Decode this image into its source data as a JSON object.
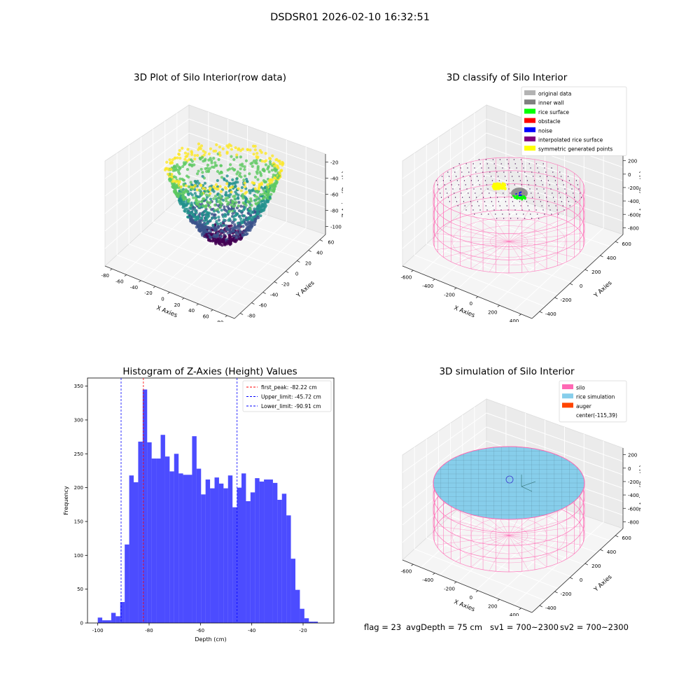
{
  "suptitle": "DSDSR01 2026-02-10 16:32:51",
  "status": {
    "flag": "flag = 23",
    "avg": "avgDepth = 75 cm",
    "sv1": "sv1 = 700~2300",
    "sv2": "sv2 = 700~2300"
  },
  "chart_data": [
    {
      "type": "scatter",
      "title": "3D Plot of Silo Interior(row data)",
      "xlabel": "X Axies",
      "ylabel": "Y Axies",
      "zlabel": "Z Axies (Depth)",
      "xticks": [
        "-80",
        "-60",
        "-40",
        "-20",
        "0",
        "20",
        "40",
        "60",
        "80"
      ],
      "yticks": [
        "-80",
        "-60",
        "-40",
        "-20",
        "0",
        "20",
        "40",
        "60"
      ],
      "zticks": [
        "-20",
        "-40",
        "-60",
        "-80",
        "-100"
      ],
      "xlim": [
        -90,
        85
      ],
      "ylim": [
        -85,
        70
      ],
      "zlim": [
        -110,
        -10
      ],
      "description_values": {
        "z_min": -100,
        "z_max": -12
      },
      "colormap": [
        "#440154",
        "#3b528b",
        "#21918c",
        "#5ec962",
        "#fde725"
      ]
    },
    {
      "type": "scatter",
      "title": "3D classify of Silo Interior",
      "xlabel": "X Axies",
      "ylabel": "Y Axies",
      "zlabel": "Z Axies (Depth)",
      "xticks": [
        "-600",
        "-400",
        "-200",
        "0",
        "200",
        "400"
      ],
      "yticks": [
        "-400",
        "-200",
        "0",
        "200",
        "400",
        "600"
      ],
      "zticks": [
        "200",
        "0",
        "-200",
        "-400",
        "-600",
        "-800"
      ],
      "legend": [
        {
          "label": "original data",
          "color": "#b3b3b3"
        },
        {
          "label": "inner wall",
          "color": "#808080"
        },
        {
          "label": "rice surface",
          "color": "#00ff00"
        },
        {
          "label": "obstacle",
          "color": "#ff0000"
        },
        {
          "label": "noise",
          "color": "#0000ff"
        },
        {
          "label": "interpolated rice surface",
          "color": "#800080"
        },
        {
          "label": "symmetric generated points",
          "color": "#ffff00"
        }
      ],
      "legend_position": "top-right"
    },
    {
      "type": "bar",
      "title": "Histogram of Z-Axies (Height) Values",
      "xlabel": "Depth (cm)",
      "ylabel": "Frequency",
      "xlim": [
        -104,
        -8
      ],
      "ylim": [
        0,
        362
      ],
      "xticks": [
        -100,
        -80,
        -60,
        -40,
        -20
      ],
      "yticks": [
        0,
        50,
        100,
        150,
        200,
        250,
        300,
        350
      ],
      "bin_start": -100,
      "bin_width": 1.75,
      "values": [
        8,
        4,
        4,
        15,
        10,
        31,
        116,
        218,
        208,
        268,
        345,
        267,
        243,
        243,
        278,
        246,
        224,
        250,
        221,
        219,
        219,
        276,
        228,
        190,
        212,
        199,
        215,
        206,
        199,
        218,
        171,
        200,
        221,
        180,
        193,
        214,
        209,
        212,
        212,
        207,
        182,
        191,
        159,
        95,
        49,
        21,
        7,
        2,
        2
      ],
      "bar_color": "#0000ff",
      "lines": [
        {
          "label": "first_peak: -82.22 cm",
          "x": -82.22,
          "color": "#ff0000"
        },
        {
          "label": "Upper_limit: -45.72 cm",
          "x": -45.72,
          "color": "#0000ff"
        },
        {
          "label": "Lower_limit: -90.91 cm",
          "x": -90.91,
          "color": "#0000ff"
        }
      ],
      "legend_position": "top-right"
    },
    {
      "type": "area",
      "title": "3D simulation of Silo Interior",
      "xlabel": "X Axies",
      "ylabel": "Y Axies",
      "zlabel": "Z Axies (Depth)",
      "xticks": [
        "-600",
        "-400",
        "-200",
        "0",
        "200",
        "400"
      ],
      "yticks": [
        "-400",
        "-200",
        "0",
        "200",
        "400",
        "600"
      ],
      "zticks": [
        "200",
        "0",
        "-200",
        "-400",
        "-600",
        "-800"
      ],
      "legend": [
        {
          "label": "silo",
          "color": "#ff69b4"
        },
        {
          "label": "rice simulation",
          "color": "#87ceeb"
        },
        {
          "label": "auger",
          "color": "#ff4500"
        },
        {
          "label": "center(-115,39)",
          "color": ""
        }
      ],
      "legend_position": "top-right"
    }
  ]
}
